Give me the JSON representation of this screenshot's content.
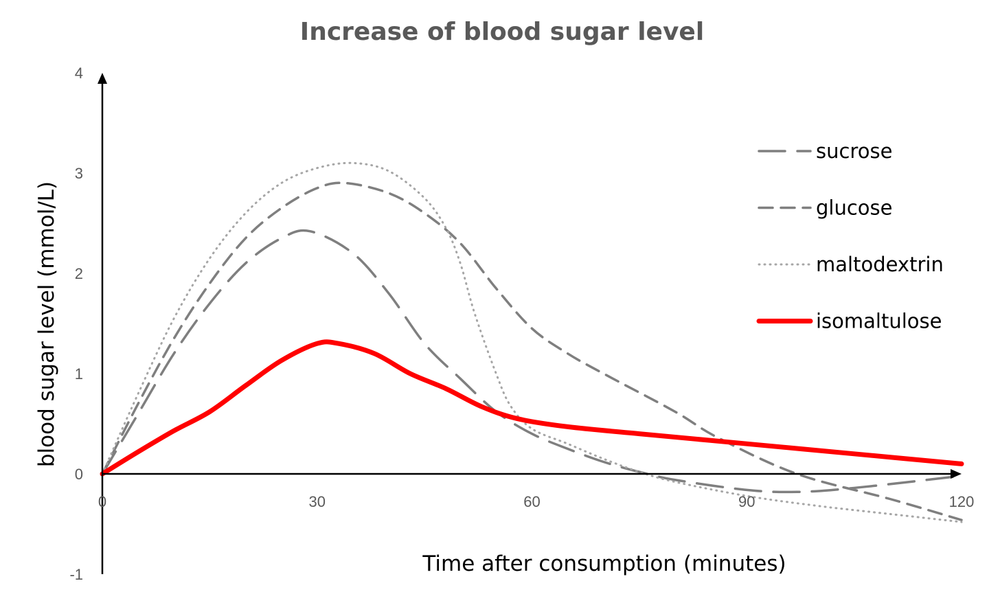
{
  "chart_data": {
    "type": "line",
    "title": "Increase of blood sugar level",
    "xlabel": "Time after consumption (minutes)",
    "ylabel": "blood sugar level (mmol/L)",
    "xlim": [
      0,
      120
    ],
    "ylim": [
      -1,
      4
    ],
    "xticks": [
      "0",
      "30",
      "60",
      "90",
      "120"
    ],
    "xtick_values": [
      0,
      30,
      60,
      90,
      120
    ],
    "yticks": [
      "-1",
      "0",
      "1",
      "2",
      "3",
      "4"
    ],
    "ytick_values": [
      -1,
      0,
      1,
      2,
      3,
      4
    ],
    "grid": false,
    "legend_position": "right",
    "series": [
      {
        "name": "sucrose",
        "color": "#7f7f7f",
        "style": "longdash",
        "x": [
          0,
          5,
          10,
          15,
          20,
          25,
          29,
          35,
          40,
          45,
          50,
          55,
          60,
          65,
          70,
          75,
          80,
          90,
          97,
          105,
          120
        ],
        "y": [
          0,
          0.6,
          1.2,
          1.7,
          2.1,
          2.35,
          2.42,
          2.2,
          1.8,
          1.3,
          0.95,
          0.62,
          0.4,
          0.25,
          0.12,
          0.02,
          -0.06,
          -0.16,
          -0.18,
          -0.14,
          -0.02
        ]
      },
      {
        "name": "glucose",
        "color": "#7f7f7f",
        "style": "dash",
        "x": [
          0,
          5,
          10,
          15,
          20,
          25,
          30,
          34,
          40,
          45,
          50,
          55,
          60,
          65,
          70,
          80,
          86,
          97,
          110,
          120
        ],
        "y": [
          0,
          0.7,
          1.35,
          1.9,
          2.35,
          2.65,
          2.85,
          2.9,
          2.8,
          2.6,
          2.3,
          1.85,
          1.45,
          1.2,
          1.0,
          0.62,
          0.36,
          0,
          -0.25,
          -0.46
        ]
      },
      {
        "name": "maltodextrin",
        "color": "#a6a6a6",
        "style": "dot",
        "x": [
          0,
          5,
          10,
          15,
          20,
          25,
          30,
          35,
          40,
          45,
          48,
          50,
          52,
          55,
          57,
          60,
          65,
          70,
          75,
          80,
          90,
          100,
          110,
          120
        ],
        "y": [
          0,
          0.8,
          1.55,
          2.15,
          2.6,
          2.9,
          3.05,
          3.1,
          3.02,
          2.75,
          2.45,
          2.1,
          1.6,
          1.0,
          0.68,
          0.45,
          0.3,
          0.15,
          0.02,
          -0.08,
          -0.22,
          -0.32,
          -0.4,
          -0.48
        ]
      },
      {
        "name": "isomaltulose",
        "color": "#ff0000",
        "style": "solid",
        "x": [
          0,
          5,
          10,
          15,
          20,
          25,
          30,
          33,
          38,
          43,
          48,
          53,
          58,
          65,
          75,
          90,
          105,
          120
        ],
        "y": [
          0,
          0.22,
          0.43,
          0.62,
          0.88,
          1.13,
          1.3,
          1.3,
          1.2,
          1.0,
          0.85,
          0.67,
          0.55,
          0.47,
          0.4,
          0.3,
          0.2,
          0.1
        ]
      }
    ]
  }
}
